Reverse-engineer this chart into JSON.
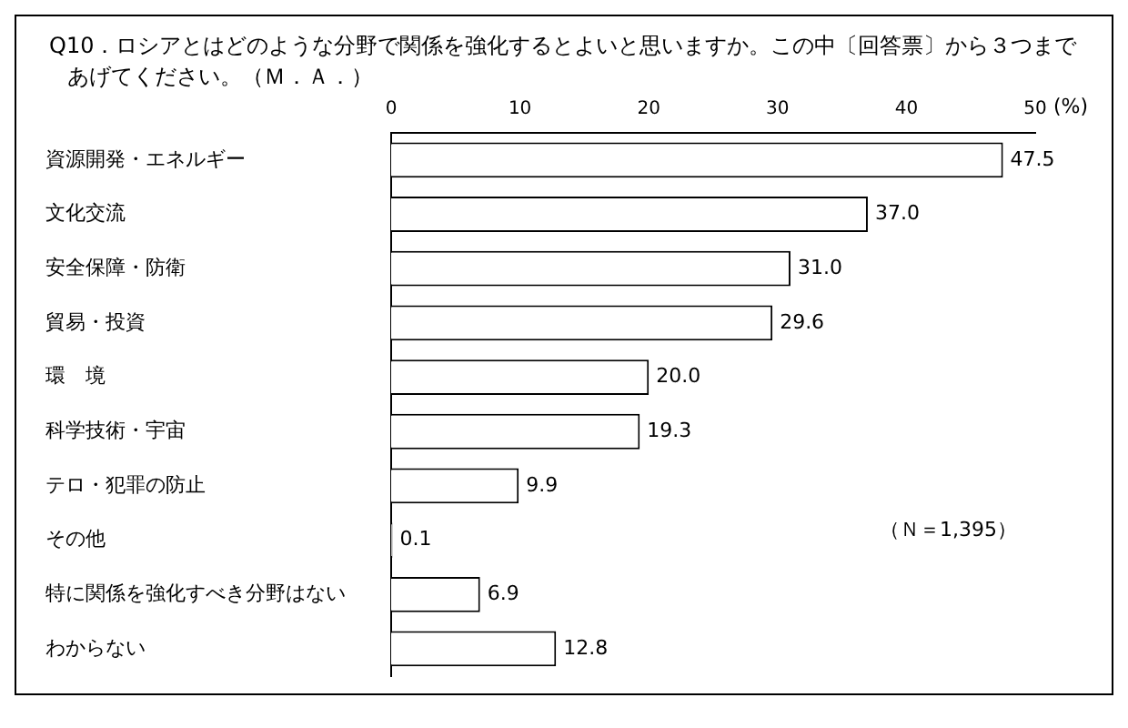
{
  "chart_data": {
    "type": "bar",
    "orientation": "horizontal",
    "title": "Q10．ロシアとはどのような分野で関係を強化するとよいと思いますか。この中〔回答票〕から３つまであげてください。（Ｍ．Ａ．）",
    "xlabel": "(%)",
    "categories": [
      "資源開発・エネルギー",
      "文化交流",
      "安全保障・防衛",
      "貿易・投資",
      "環　境",
      "科学技術・宇宙",
      "テロ・犯罪の防止",
      "その他",
      "特に関係を強化すべき分野はない",
      "わからない"
    ],
    "values": [
      47.5,
      37.0,
      31.0,
      29.6,
      20.0,
      19.3,
      9.9,
      0.1,
      6.9,
      12.8
    ],
    "value_labels": [
      "47.5",
      "37.0",
      "31.0",
      "29.6",
      "20.0",
      "19.3",
      "9.9",
      "0.1",
      "6.9",
      "12.8"
    ],
    "color": "#ffffff",
    "xlim": [
      0,
      50
    ],
    "xticks": [
      0,
      10,
      20,
      30,
      40,
      50
    ],
    "grid": false,
    "legend": false,
    "annotations": [
      "（Ｎ＝1,395）"
    ]
  }
}
